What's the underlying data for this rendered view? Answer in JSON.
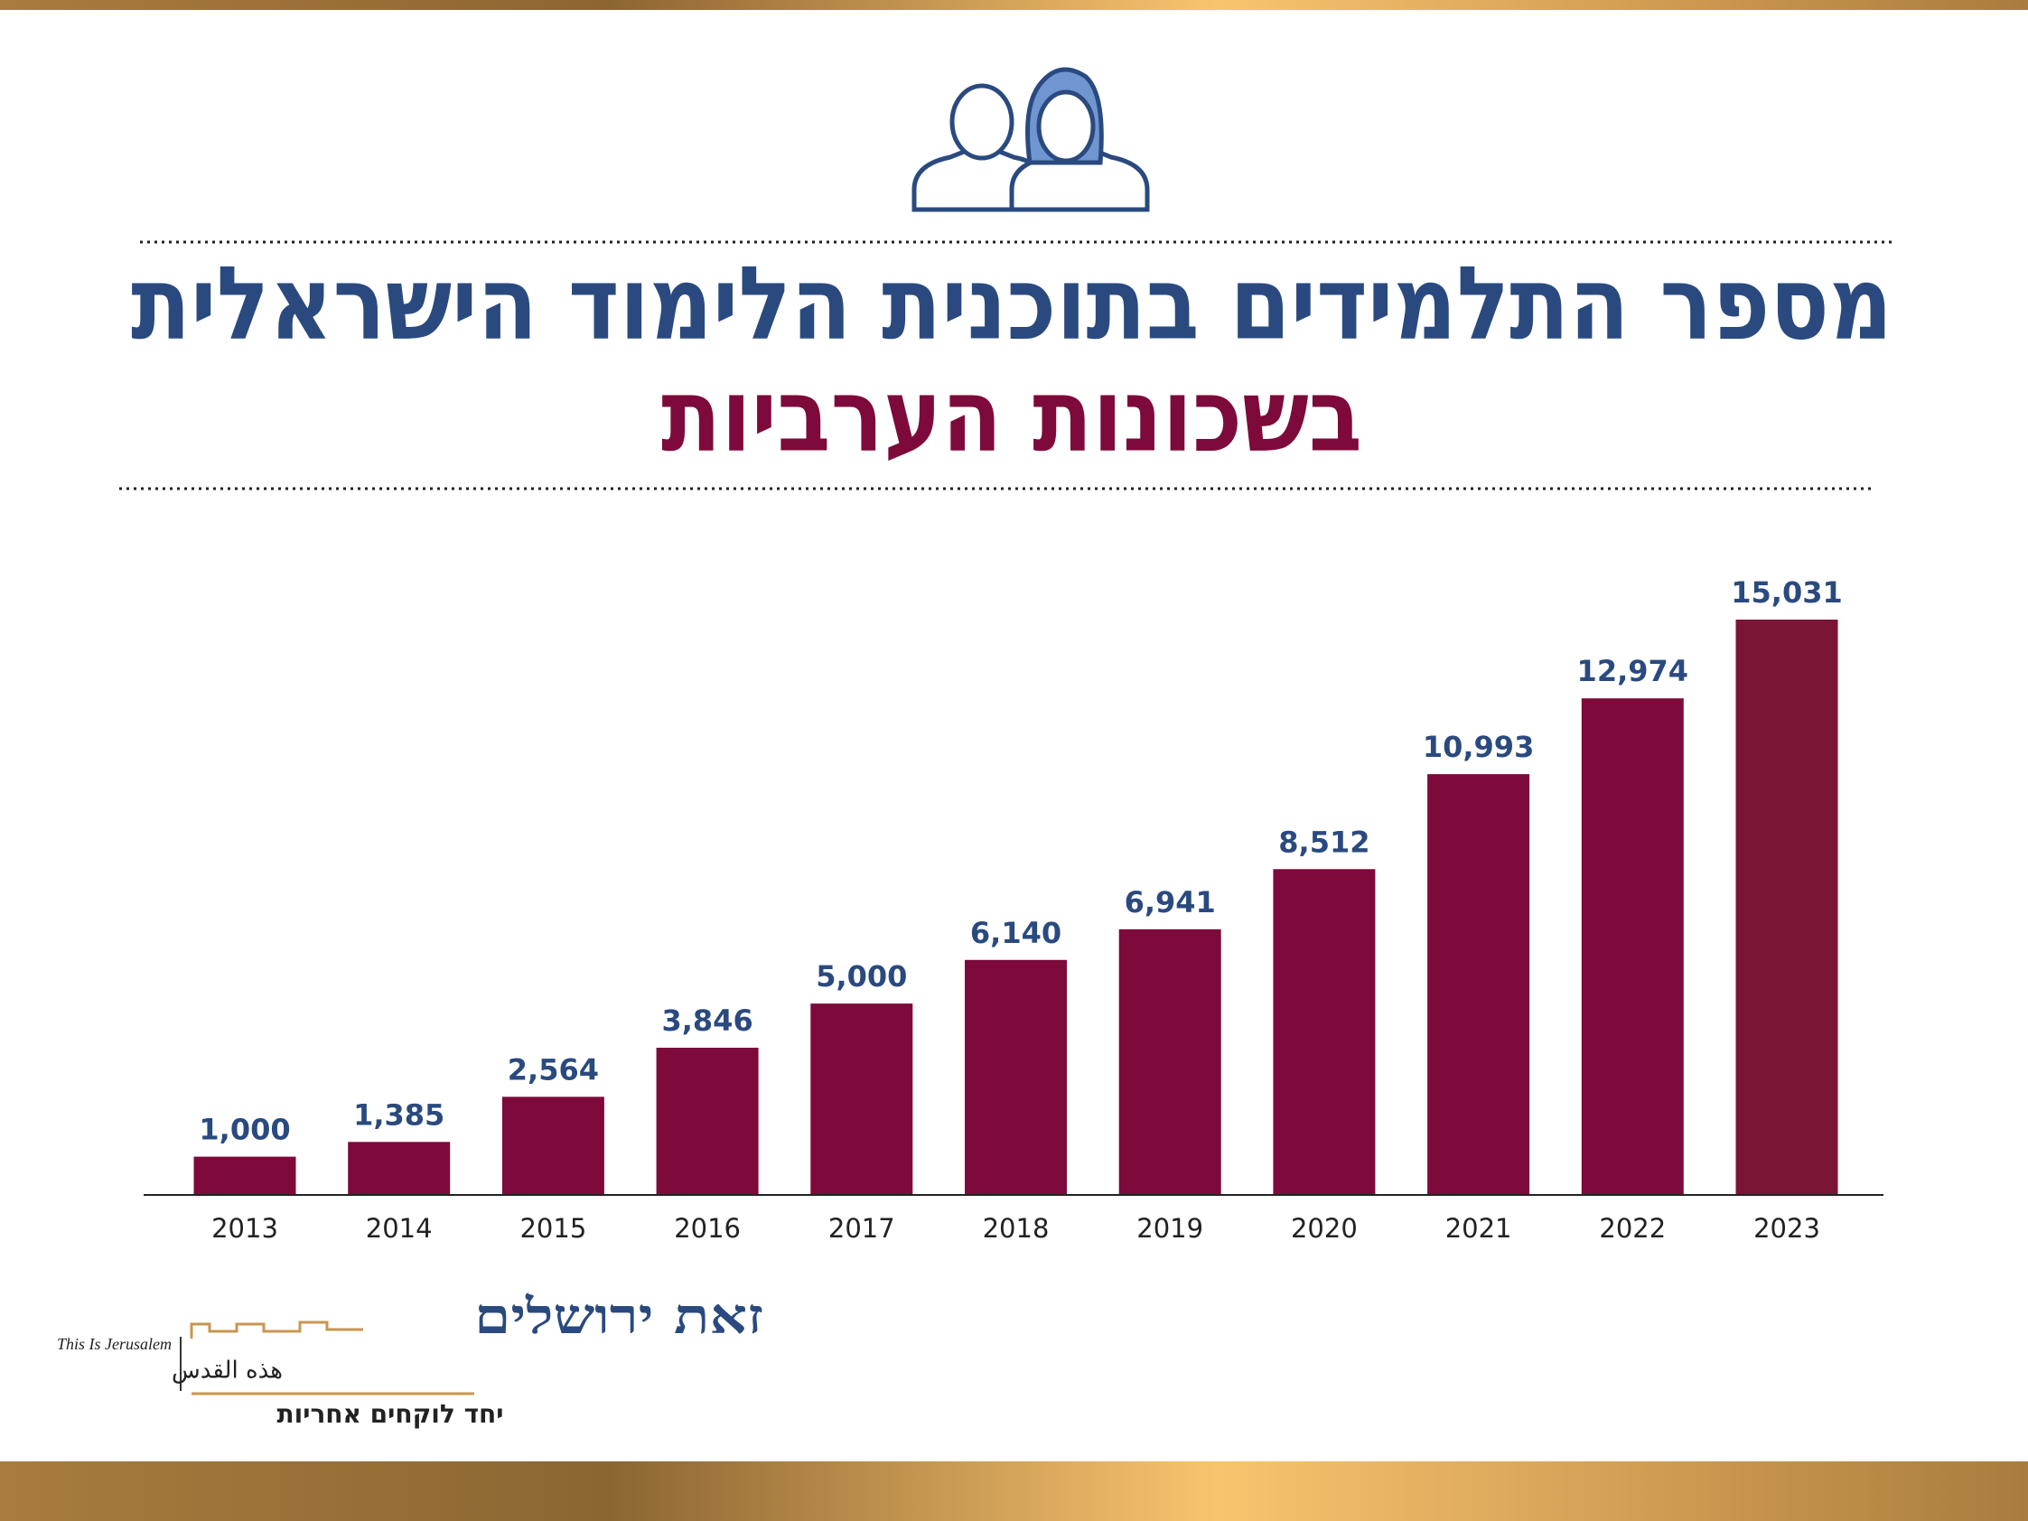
{
  "chart_data": {
    "type": "bar",
    "title": "מספר התלמידים בתוכנית הלימוד הישראלית",
    "subtitle": "בשכונות הערביות",
    "categories": [
      "2013",
      "2014",
      "2015",
      "2016",
      "2017",
      "2018",
      "2019",
      "2020",
      "2021",
      "2022",
      "2023"
    ],
    "values": [
      1000,
      1385,
      2564,
      3846,
      5000,
      6140,
      6941,
      8512,
      10993,
      12974,
      15031
    ],
    "value_labels": [
      "1,000",
      "1,385",
      "2,564",
      "3,846",
      "5,000",
      "6,140",
      "6,941",
      "8,512",
      "10,993",
      "12,974",
      "15,031"
    ],
    "colors": [
      "#7d0a3a",
      "#7d0a3a",
      "#7d0a3a",
      "#7d0a3a",
      "#7d0a3a",
      "#7d0a3a",
      "#7d0a3a",
      "#7d0a3a",
      "#7d0a3a",
      "#7d0a3a",
      "#7a1535"
    ]
  },
  "logo": {
    "name": "זאת ירושלים",
    "english": "This Is Jerusalem",
    "arabic": "هذه القدس",
    "slogan": "יחד לוקחים אחריות"
  }
}
